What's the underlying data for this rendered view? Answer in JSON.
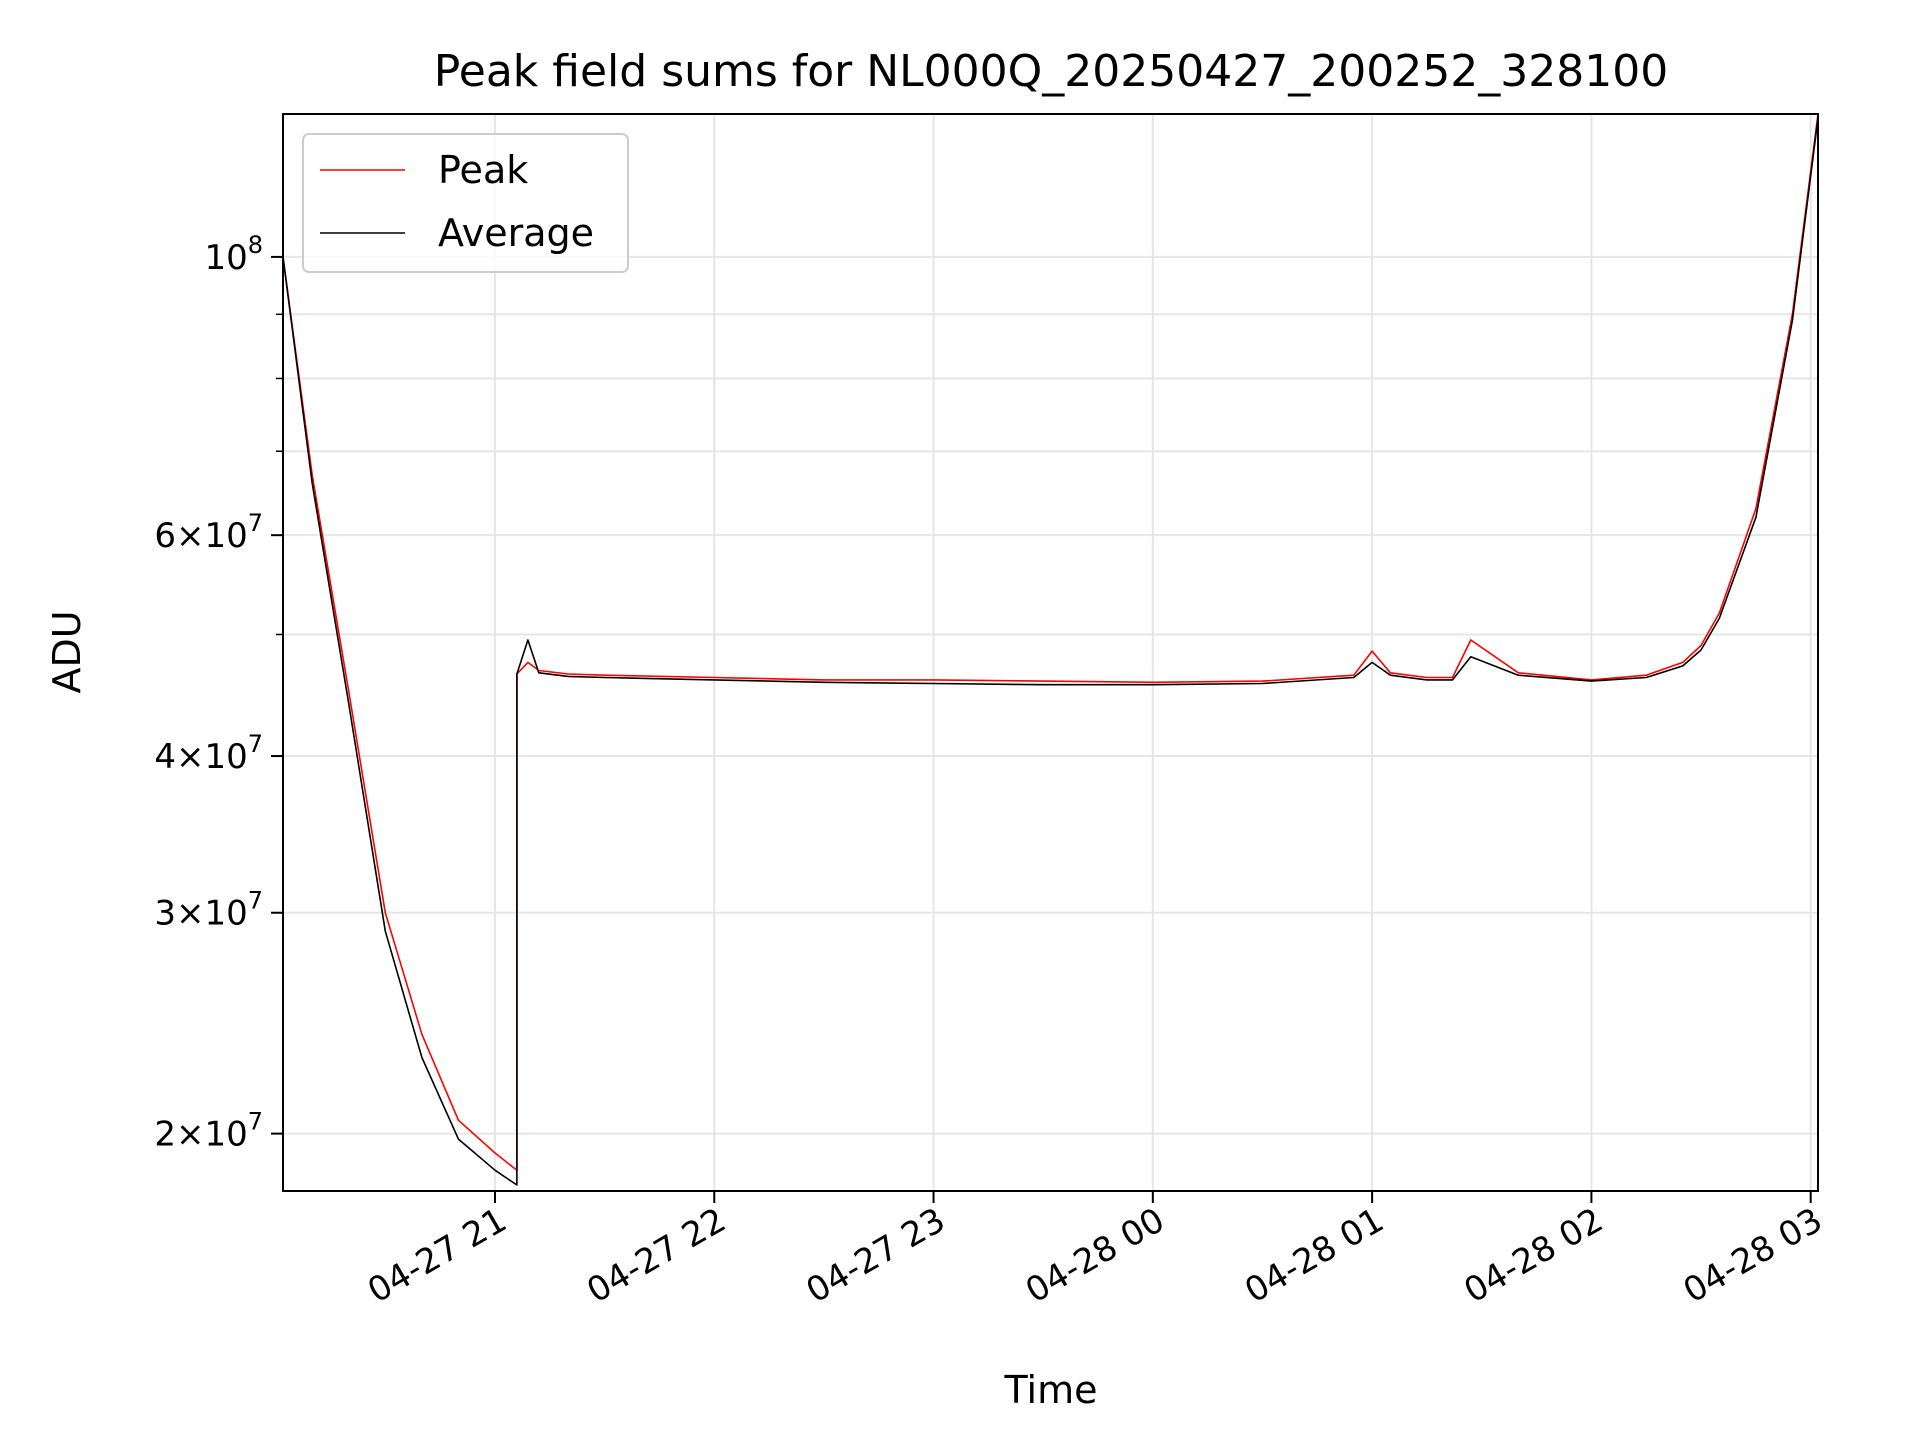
{
  "chart_data": {
    "type": "line",
    "title": "Peak field sums for NL000Q_20250427_200252_328100",
    "xlabel": "Time",
    "ylabel": "ADU",
    "yscale": "log",
    "grid": true,
    "legend_position": "top-left",
    "xlim": [
      "2025-04-27 20:02",
      "2025-04-28 03:02"
    ],
    "ylim": [
      18000000,
      130000000
    ],
    "x_ticks": [
      {
        "value": "2025-04-27 21:00",
        "label": "04-27 21"
      },
      {
        "value": "2025-04-27 22:00",
        "label": "04-27 22"
      },
      {
        "value": "2025-04-27 23:00",
        "label": "04-27 23"
      },
      {
        "value": "2025-04-28 00:00",
        "label": "04-28 00"
      },
      {
        "value": "2025-04-28 01:00",
        "label": "04-28 01"
      },
      {
        "value": "2025-04-28 02:00",
        "label": "04-28 02"
      },
      {
        "value": "2025-04-28 03:00",
        "label": "04-28 03"
      }
    ],
    "y_ticks": [
      {
        "value": 100000000,
        "mant": "",
        "exp": "8"
      },
      {
        "value": 60000000,
        "mant": "6",
        "exp": "7"
      },
      {
        "value": 40000000,
        "mant": "4",
        "exp": "7"
      },
      {
        "value": 30000000,
        "mant": "3",
        "exp": "7"
      },
      {
        "value": 20000000,
        "mant": "2",
        "exp": "7"
      }
    ],
    "y_minor_ticks": [
      90000000,
      80000000,
      70000000,
      50000000
    ],
    "series": [
      {
        "name": "Peak",
        "color": "#ff0000",
        "x": [
          "2025-04-27 20:02",
          "2025-04-27 20:10",
          "2025-04-27 20:20",
          "2025-04-27 20:30",
          "2025-04-27 20:40",
          "2025-04-27 20:50",
          "2025-04-27 21:00",
          "2025-04-27 21:06",
          "2025-04-27 21:06",
          "2025-04-27 21:09",
          "2025-04-27 21:12",
          "2025-04-27 21:20",
          "2025-04-27 21:30",
          "2025-04-27 22:00",
          "2025-04-27 22:30",
          "2025-04-27 23:00",
          "2025-04-27 23:30",
          "2025-04-28 00:00",
          "2025-04-28 00:30",
          "2025-04-28 00:55",
          "2025-04-28 01:00",
          "2025-04-28 01:05",
          "2025-04-28 01:15",
          "2025-04-28 01:22",
          "2025-04-28 01:27",
          "2025-04-28 01:40",
          "2025-04-28 02:00",
          "2025-04-28 02:15",
          "2025-04-28 02:25",
          "2025-04-28 02:30",
          "2025-04-28 02:35",
          "2025-04-28 02:45",
          "2025-04-28 02:55",
          "2025-04-28 03:02"
        ],
        "values": [
          100000000,
          67000000,
          45000000,
          30000000,
          24000000,
          20500000,
          19300000,
          18700000,
          46500000,
          47500000,
          46800000,
          46500000,
          46400000,
          46200000,
          46000000,
          46000000,
          45900000,
          45800000,
          45900000,
          46400000,
          48500000,
          46600000,
          46200000,
          46200000,
          49500000,
          46600000,
          46000000,
          46400000,
          47500000,
          49000000,
          52000000,
          63000000,
          90000000,
          130000000
        ]
      },
      {
        "name": "Average",
        "color": "#000000",
        "x": [
          "2025-04-27 20:02",
          "2025-04-27 20:10",
          "2025-04-27 20:20",
          "2025-04-27 20:30",
          "2025-04-27 20:40",
          "2025-04-27 20:50",
          "2025-04-27 21:00",
          "2025-04-27 21:06",
          "2025-04-27 21:06",
          "2025-04-27 21:09",
          "2025-04-27 21:12",
          "2025-04-27 21:20",
          "2025-04-27 21:30",
          "2025-04-27 22:00",
          "2025-04-27 22:30",
          "2025-04-27 23:00",
          "2025-04-27 23:30",
          "2025-04-28 00:00",
          "2025-04-28 00:30",
          "2025-04-28 00:55",
          "2025-04-28 01:00",
          "2025-04-28 01:05",
          "2025-04-28 01:15",
          "2025-04-28 01:22",
          "2025-04-28 01:27",
          "2025-04-28 01:40",
          "2025-04-28 02:00",
          "2025-04-28 02:15",
          "2025-04-28 02:25",
          "2025-04-28 02:30",
          "2025-04-28 02:35",
          "2025-04-28 02:45",
          "2025-04-28 02:55",
          "2025-04-28 03:02"
        ],
        "values": [
          100000000,
          66000000,
          44000000,
          29000000,
          23000000,
          19800000,
          18700000,
          18200000,
          46500000,
          49500000,
          46600000,
          46300000,
          46200000,
          46000000,
          45800000,
          45700000,
          45600000,
          45600000,
          45700000,
          46200000,
          47500000,
          46400000,
          46000000,
          46000000,
          48000000,
          46400000,
          45900000,
          46200000,
          47200000,
          48600000,
          51500000,
          62000000,
          89000000,
          129000000
        ]
      }
    ]
  }
}
